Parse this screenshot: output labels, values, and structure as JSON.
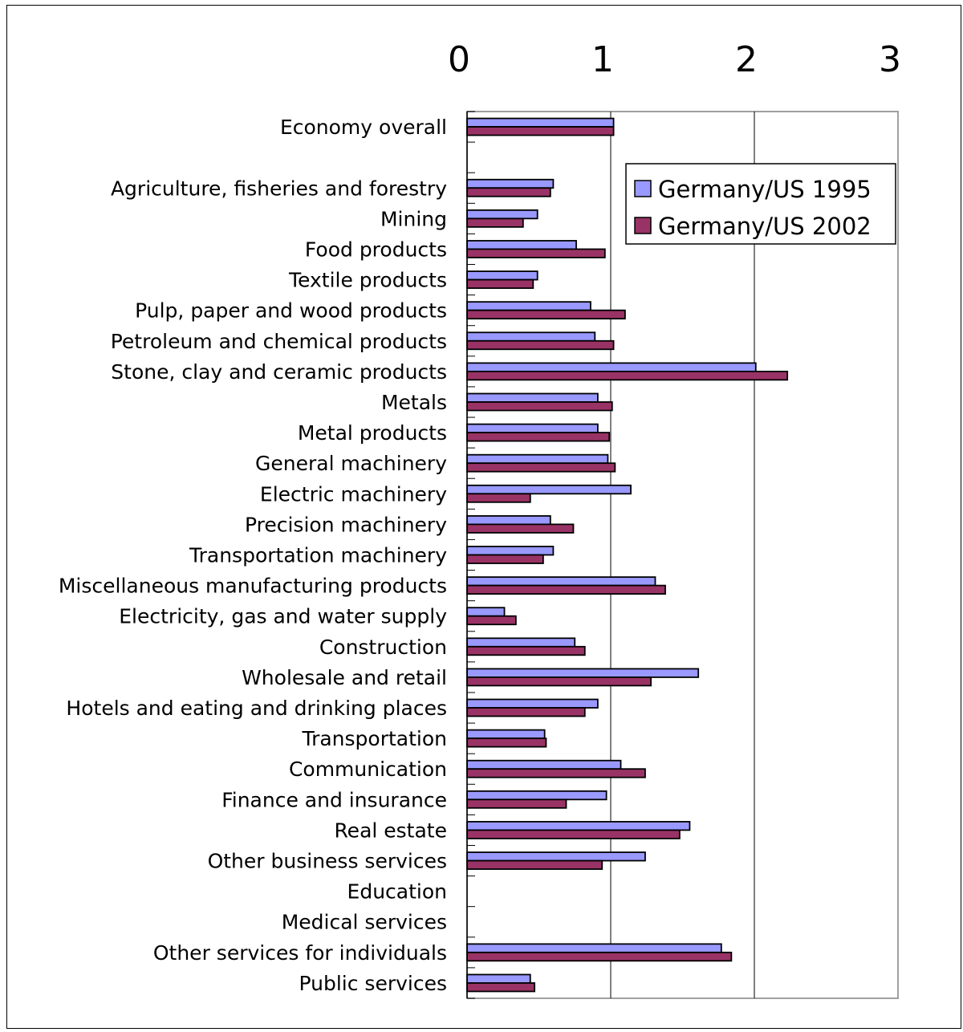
{
  "chart_data": {
    "type": "bar",
    "orientation": "horizontal",
    "xlim": [
      0,
      3
    ],
    "xticks": [
      "0",
      "1",
      "2",
      "3"
    ],
    "x_axis_position": "top",
    "grid": "vertical",
    "legend_position": "top-right",
    "categories": [
      "Economy overall",
      "",
      "Agriculture, fisheries and forestry",
      "Mining",
      "Food products",
      "Textile products",
      "Pulp, paper and wood products",
      "Petroleum and chemical products",
      "Stone, clay and ceramic products",
      "Metals",
      "Metal products",
      "General machinery",
      "Electric machinery",
      "Precision machinery",
      "Transportation machinery",
      "Miscellaneous manufacturing products",
      "Electricity, gas and water supply",
      "Construction",
      "Wholesale and retail",
      "Hotels and eating and drinking places",
      "Transportation",
      "Communication",
      "Finance and insurance",
      "Real estate",
      "Other business services",
      "Education",
      "Medical services",
      "Other services for individuals",
      "Public services"
    ],
    "series": [
      {
        "name": "Germany/US 1995",
        "color": "#9999ff",
        "values": [
          1.02,
          null,
          0.6,
          0.49,
          0.76,
          0.49,
          0.86,
          0.89,
          2.01,
          0.91,
          0.91,
          0.98,
          1.14,
          0.58,
          0.6,
          1.31,
          0.26,
          0.75,
          1.61,
          0.91,
          0.54,
          1.07,
          0.97,
          1.55,
          1.24,
          null,
          null,
          1.77,
          0.44
        ]
      },
      {
        "name": "Germany/US 2002",
        "color": "#993366",
        "values": [
          1.02,
          null,
          0.58,
          0.39,
          0.96,
          0.46,
          1.1,
          1.02,
          2.23,
          1.01,
          0.99,
          1.03,
          0.44,
          0.74,
          0.53,
          1.38,
          0.34,
          0.82,
          1.28,
          0.82,
          0.55,
          1.24,
          0.69,
          1.48,
          0.94,
          null,
          null,
          1.84,
          0.47
        ]
      }
    ]
  }
}
